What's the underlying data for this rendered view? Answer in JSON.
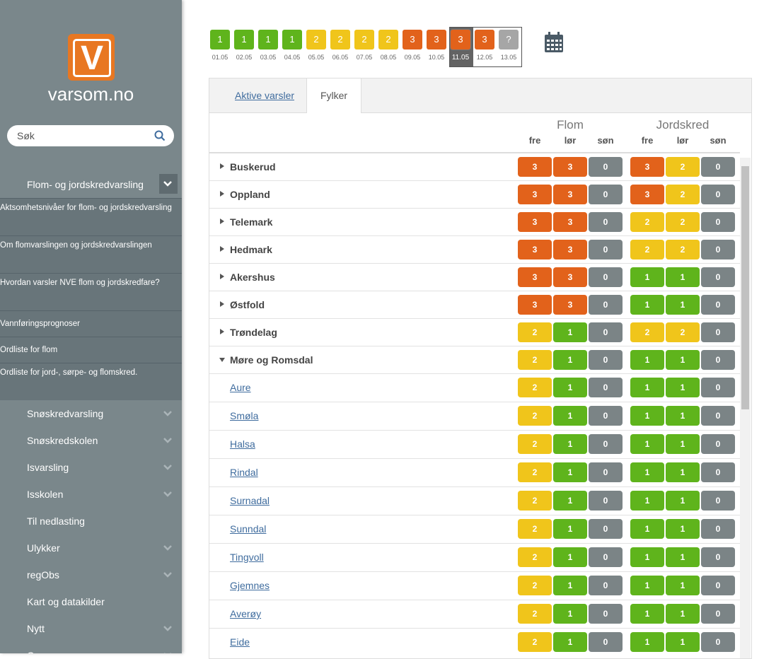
{
  "sidebar": {
    "logo_letter": "V",
    "site_name": "varsom.no",
    "search_placeholder": "Søk",
    "menu": [
      {
        "label": "Flom- og jordskredvarsling",
        "has_children": true,
        "expanded": true,
        "children": [
          "Aktsomhetsnivåer for flom- og jordskredvarsling",
          "Om flomvarslingen og jordskredvarslingen",
          "Hvordan varsler NVE flom og jordskredfare?",
          "Vannføringsprognoser",
          "Ordliste for flom",
          "Ordliste for jord-, sørpe- og flomskred."
        ]
      },
      {
        "label": "Snøskredvarsling",
        "has_children": true
      },
      {
        "label": "Snøskredskolen",
        "has_children": true
      },
      {
        "label": "Isvarsling",
        "has_children": true
      },
      {
        "label": "Isskolen",
        "has_children": true
      },
      {
        "label": "Til nedlasting",
        "has_children": false
      },
      {
        "label": "Ulykker",
        "has_children": true
      },
      {
        "label": "regObs",
        "has_children": true
      },
      {
        "label": "Kart og datakilder",
        "has_children": false
      },
      {
        "label": "Nytt",
        "has_children": true
      },
      {
        "label": "Om varsom.no",
        "has_children": true
      }
    ]
  },
  "date_strip": [
    {
      "level": 1,
      "date": "01.05"
    },
    {
      "level": 1,
      "date": "02.05"
    },
    {
      "level": 1,
      "date": "03.05"
    },
    {
      "level": 1,
      "date": "04.05"
    },
    {
      "level": 2,
      "date": "05.05"
    },
    {
      "level": 2,
      "date": "06.05"
    },
    {
      "level": 2,
      "date": "07.05"
    },
    {
      "level": 2,
      "date": "08.05"
    },
    {
      "level": 3,
      "date": "09.05"
    },
    {
      "level": 3,
      "date": "10.05"
    },
    {
      "level": 3,
      "date": "11.05",
      "selected": true
    },
    {
      "level": 3,
      "date": "12.05"
    },
    {
      "level": "?",
      "date": "13.05"
    }
  ],
  "tabs": [
    "Aktive varsler",
    "Fylker"
  ],
  "table": {
    "groups": [
      {
        "name": "Flom",
        "days": [
          "fre",
          "lør",
          "søn"
        ]
      },
      {
        "name": "Jordskred",
        "days": [
          "fre",
          "lør",
          "søn"
        ]
      }
    ],
    "rows": [
      {
        "name": "Buskerud",
        "kind": "county",
        "flom": [
          3,
          3,
          0
        ],
        "jordskred": [
          3,
          2,
          0
        ]
      },
      {
        "name": "Oppland",
        "kind": "county",
        "flom": [
          3,
          3,
          0
        ],
        "jordskred": [
          3,
          2,
          0
        ]
      },
      {
        "name": "Telemark",
        "kind": "county",
        "flom": [
          3,
          3,
          0
        ],
        "jordskred": [
          2,
          2,
          0
        ]
      },
      {
        "name": "Hedmark",
        "kind": "county",
        "flom": [
          3,
          3,
          0
        ],
        "jordskred": [
          2,
          2,
          0
        ]
      },
      {
        "name": "Akershus",
        "kind": "county",
        "flom": [
          3,
          3,
          0
        ],
        "jordskred": [
          1,
          1,
          0
        ]
      },
      {
        "name": "Østfold",
        "kind": "county",
        "flom": [
          3,
          3,
          0
        ],
        "jordskred": [
          1,
          1,
          0
        ]
      },
      {
        "name": "Trøndelag",
        "kind": "county",
        "flom": [
          2,
          1,
          0
        ],
        "jordskred": [
          2,
          2,
          0
        ]
      },
      {
        "name": "Møre og Romsdal",
        "kind": "county",
        "expanded": true,
        "flom": [
          2,
          1,
          0
        ],
        "jordskred": [
          1,
          1,
          0
        ]
      },
      {
        "name": "Aure",
        "kind": "municipality",
        "flom": [
          2,
          1,
          0
        ],
        "jordskred": [
          1,
          1,
          0
        ]
      },
      {
        "name": "Smøla",
        "kind": "municipality",
        "flom": [
          2,
          1,
          0
        ],
        "jordskred": [
          1,
          1,
          0
        ]
      },
      {
        "name": "Halsa",
        "kind": "municipality",
        "flom": [
          2,
          1,
          0
        ],
        "jordskred": [
          1,
          1,
          0
        ]
      },
      {
        "name": "Rindal",
        "kind": "municipality",
        "flom": [
          2,
          1,
          0
        ],
        "jordskred": [
          1,
          1,
          0
        ]
      },
      {
        "name": "Surnadal",
        "kind": "municipality",
        "flom": [
          2,
          1,
          0
        ],
        "jordskred": [
          1,
          1,
          0
        ]
      },
      {
        "name": "Sunndal",
        "kind": "municipality",
        "flom": [
          2,
          1,
          0
        ],
        "jordskred": [
          1,
          1,
          0
        ]
      },
      {
        "name": "Tingvoll",
        "kind": "municipality",
        "flom": [
          2,
          1,
          0
        ],
        "jordskred": [
          1,
          1,
          0
        ]
      },
      {
        "name": "Gjemnes",
        "kind": "municipality",
        "flom": [
          2,
          1,
          0
        ],
        "jordskred": [
          1,
          1,
          0
        ]
      },
      {
        "name": "Averøy",
        "kind": "municipality",
        "flom": [
          2,
          1,
          0
        ],
        "jordskred": [
          1,
          1,
          0
        ]
      },
      {
        "name": "Eide",
        "kind": "municipality",
        "flom": [
          2,
          1,
          0
        ],
        "jordskred": [
          1,
          1,
          0
        ]
      }
    ]
  }
}
